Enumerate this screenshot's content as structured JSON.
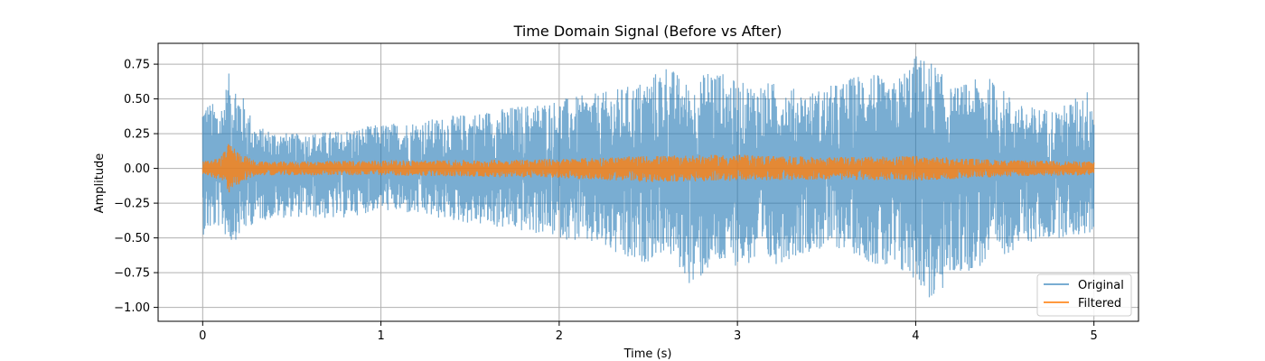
{
  "chart_data": {
    "type": "line",
    "title": "Time Domain Signal (Before vs After)",
    "xlabel": "Time (s)",
    "ylabel": "Amplitude",
    "xlim": [
      -0.25,
      5.25
    ],
    "ylim": [
      -1.1,
      0.9
    ],
    "xticks": [
      0,
      1,
      2,
      3,
      4,
      5
    ],
    "xtick_labels": [
      "0",
      "1",
      "2",
      "3",
      "4",
      "5"
    ],
    "yticks": [
      -1.0,
      -0.75,
      -0.5,
      -0.25,
      0.0,
      0.25,
      0.5,
      0.75
    ],
    "ytick_labels": [
      "−1.00",
      "−0.75",
      "−0.50",
      "−0.25",
      "0.00",
      "0.25",
      "0.50",
      "0.75"
    ],
    "grid": true,
    "legend_position": "lower-right",
    "series": [
      {
        "name": "Original",
        "color": "#1f77b4",
        "alpha": 0.6,
        "x": [
          0,
          0.1,
          0.15,
          0.2,
          0.3,
          0.5,
          0.75,
          1.0,
          1.25,
          1.5,
          1.75,
          2.0,
          2.25,
          2.4,
          2.5,
          2.6,
          2.75,
          2.85,
          3.0,
          3.2,
          3.4,
          3.6,
          3.75,
          3.85,
          4.0,
          4.1,
          4.2,
          4.4,
          4.6,
          4.8,
          5.0
        ],
        "upper": [
          0.5,
          0.45,
          0.7,
          0.6,
          0.3,
          0.25,
          0.27,
          0.32,
          0.35,
          0.4,
          0.45,
          0.5,
          0.55,
          0.6,
          0.65,
          0.76,
          0.58,
          0.75,
          0.62,
          0.62,
          0.55,
          0.63,
          0.74,
          0.58,
          0.82,
          0.77,
          0.58,
          0.67,
          0.45,
          0.43,
          0.6
        ],
        "lower": [
          -0.48,
          -0.42,
          -0.55,
          -0.5,
          -0.38,
          -0.35,
          -0.37,
          -0.3,
          -0.35,
          -0.4,
          -0.45,
          -0.5,
          -0.58,
          -0.71,
          -0.67,
          -0.6,
          -0.87,
          -0.72,
          -0.7,
          -0.7,
          -0.6,
          -0.58,
          -0.68,
          -0.77,
          -0.8,
          -1.0,
          -0.78,
          -0.7,
          -0.55,
          -0.5,
          -0.48
        ]
      },
      {
        "name": "Filtered",
        "color": "#ff7f0e",
        "alpha": 0.8,
        "x": [
          0,
          0.1,
          0.15,
          0.2,
          0.3,
          0.5,
          1.0,
          1.5,
          2.0,
          2.5,
          3.0,
          3.5,
          4.0,
          4.5,
          5.0
        ],
        "upper": [
          0.05,
          0.08,
          0.19,
          0.12,
          0.05,
          0.05,
          0.06,
          0.06,
          0.07,
          0.09,
          0.1,
          0.08,
          0.09,
          0.06,
          0.05
        ],
        "lower": [
          -0.05,
          -0.08,
          -0.18,
          -0.12,
          -0.05,
          -0.05,
          -0.05,
          -0.06,
          -0.07,
          -0.1,
          -0.09,
          -0.08,
          -0.09,
          -0.06,
          -0.05
        ]
      }
    ]
  }
}
